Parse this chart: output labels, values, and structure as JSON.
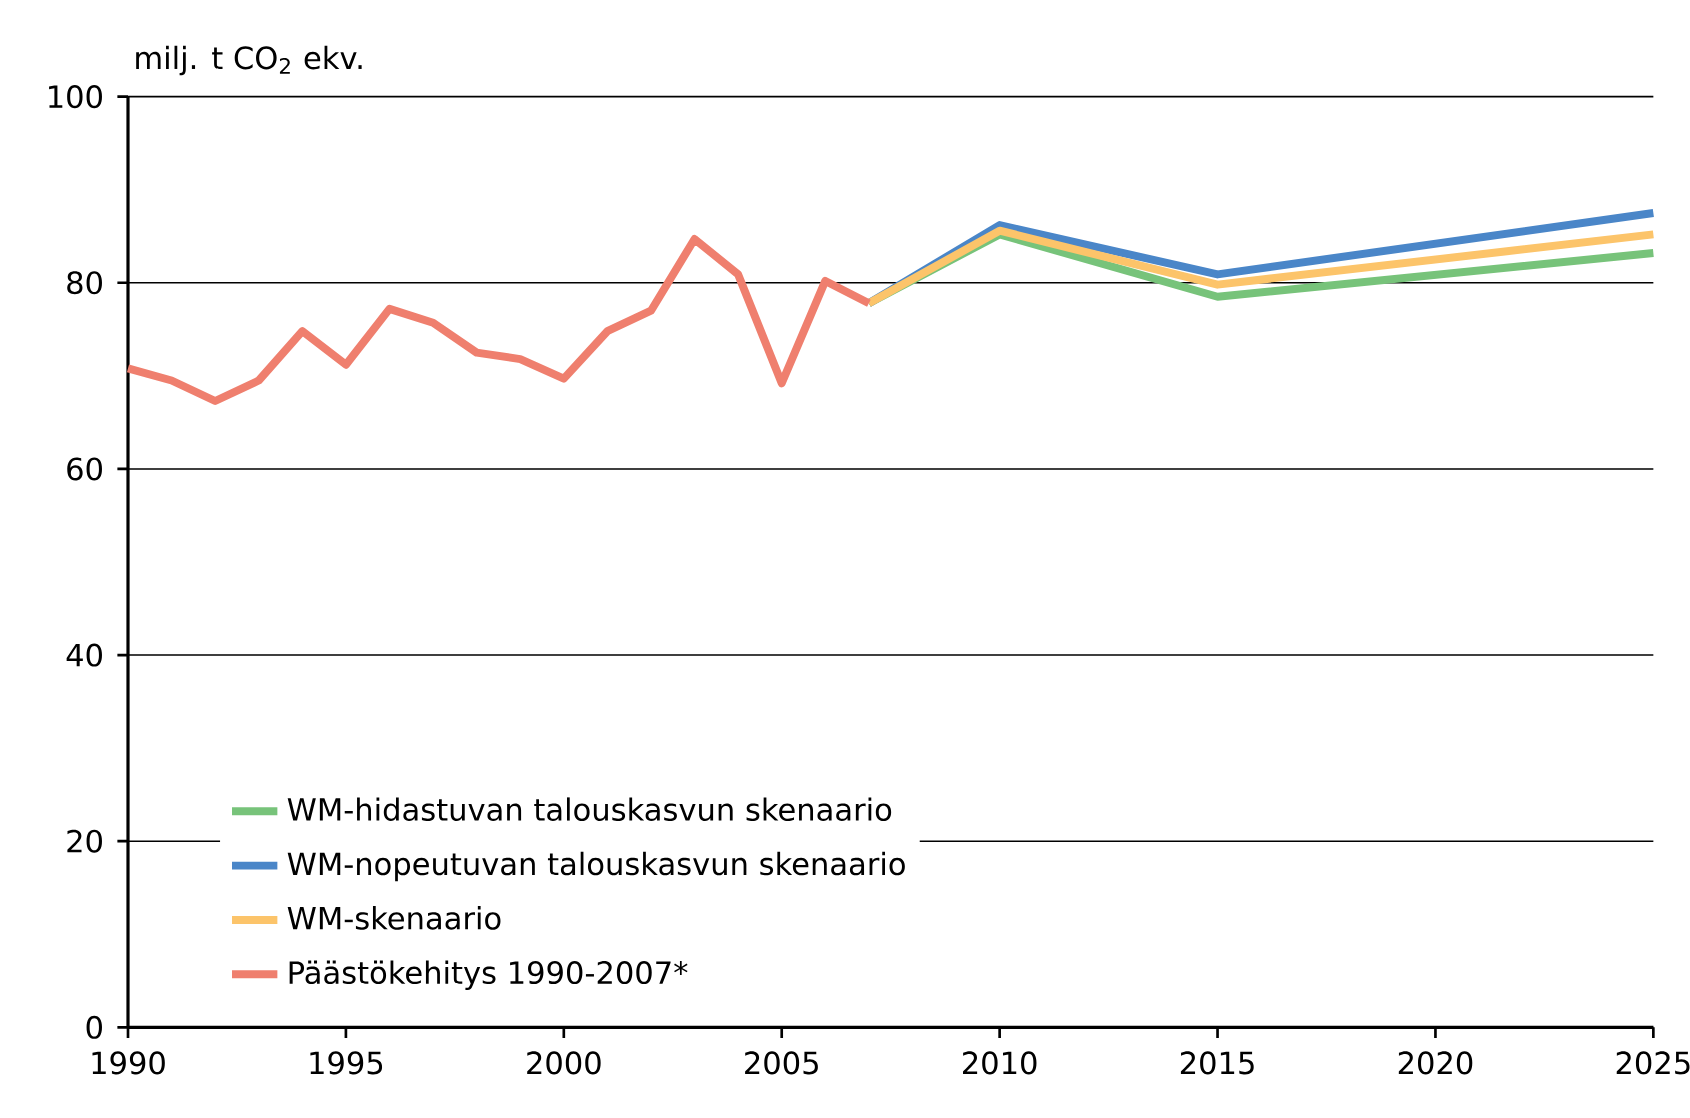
{
  "chart_data": {
    "type": "line",
    "ylabel": "milj. t CO$_{2}$ ekv.",
    "xlim": [
      1990,
      2025
    ],
    "xticks": [
      1990,
      1995,
      2000,
      2005,
      2010,
      2015,
      2020,
      2025
    ],
    "ylim": [
      0,
      100
    ],
    "yticks": [
      0,
      20,
      40,
      60,
      80,
      100
    ],
    "grid": "y",
    "legend": "bottom left",
    "marker": "none",
    "line_style": "solid",
    "series": [
      {
        "name": "WM-hidastuvan talouskasvun skenaario",
        "color": "#77c37a",
        "x": [
          2007,
          2010,
          2015,
          2025
        ],
        "values": [
          77.8,
          85.2,
          78.5,
          83.2
        ]
      },
      {
        "name": "WM-nopeutuvan talouskasvun skenaario",
        "color": "#4a86c8",
        "x": [
          2007,
          2010,
          2015,
          2025
        ],
        "values": [
          77.8,
          86.2,
          80.9,
          87.5
        ]
      },
      {
        "name": "WM-skenaario",
        "color": "#fcc46a",
        "x": [
          2007,
          2010,
          2015,
          2025
        ],
        "values": [
          77.8,
          85.6,
          79.8,
          85.2
        ]
      },
      {
        "name": "Päästökehitys 1990-2007*",
        "color": "#ef7f6e",
        "x": [
          1990,
          1991,
          1992,
          1993,
          1994,
          1995,
          1996,
          1997,
          1998,
          1999,
          2000,
          2001,
          2002,
          2003,
          2004,
          2005,
          2006,
          2007
        ],
        "values": [
          70.8,
          69.5,
          67.3,
          69.5,
          74.8,
          71.2,
          77.2,
          75.7,
          72.5,
          71.8,
          69.7,
          74.8,
          77.0,
          84.7,
          80.9,
          69.2,
          80.2,
          77.8
        ]
      }
    ]
  }
}
